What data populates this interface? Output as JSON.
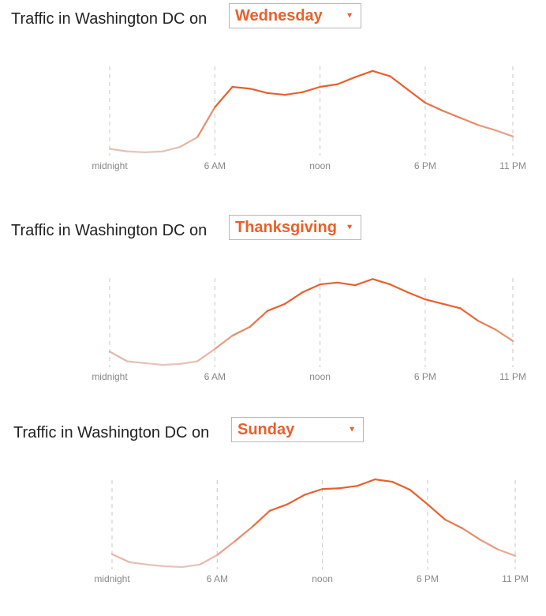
{
  "chart_data": [
    {
      "type": "line",
      "title_prefix": "Traffic in Washington DC on",
      "selected_day": "Wednesday",
      "x": [
        0,
        1,
        2,
        3,
        4,
        5,
        6,
        7,
        8,
        9,
        10,
        11,
        12,
        13,
        14,
        15,
        16,
        17,
        18,
        19,
        20,
        21,
        22,
        23
      ],
      "x_ticks": [
        {
          "value": 0,
          "label": "midnight"
        },
        {
          "value": 6,
          "label": "6 AM"
        },
        {
          "value": 12,
          "label": "noon"
        },
        {
          "value": 18,
          "label": "6 PM"
        },
        {
          "value": 23,
          "label": "11 PM"
        }
      ],
      "values": [
        5,
        2,
        1,
        2,
        7,
        18,
        52,
        75,
        73,
        68,
        66,
        69,
        75,
        78,
        86,
        93,
        87,
        72,
        57,
        48,
        40,
        32,
        26,
        19
      ],
      "ylim": [
        0,
        100
      ],
      "colors": {
        "low": "#e6c6bc",
        "high": "#e8602c"
      },
      "grid": "vertical-dashed"
    },
    {
      "type": "line",
      "title_prefix": "Traffic in Washington DC on",
      "selected_day": "Thanksgiving",
      "x": [
        0,
        1,
        2,
        3,
        4,
        5,
        6,
        7,
        8,
        9,
        10,
        11,
        12,
        13,
        14,
        15,
        16,
        17,
        18,
        19,
        20,
        21,
        22,
        23
      ],
      "x_ticks": [
        {
          "value": 0,
          "label": "midnight"
        },
        {
          "value": 6,
          "label": "6 AM"
        },
        {
          "value": 12,
          "label": "noon"
        },
        {
          "value": 18,
          "label": "6 PM"
        },
        {
          "value": 23,
          "label": "11 PM"
        }
      ],
      "values": [
        15,
        4,
        2,
        0,
        1,
        4,
        18,
        33,
        43,
        61,
        69,
        82,
        91,
        93,
        90,
        97,
        91,
        82,
        74,
        69,
        64,
        50,
        40,
        27
      ],
      "ylim": [
        0,
        100
      ],
      "colors": {
        "low": "#e6c6bc",
        "high": "#e8602c"
      },
      "grid": "vertical-dashed"
    },
    {
      "type": "line",
      "title_prefix": "Traffic in Washington DC on",
      "selected_day": "Sunday",
      "x": [
        0,
        1,
        2,
        3,
        4,
        5,
        6,
        7,
        8,
        9,
        10,
        11,
        12,
        13,
        14,
        15,
        16,
        17,
        18,
        19,
        20,
        21,
        22,
        23
      ],
      "x_ticks": [
        {
          "value": 0,
          "label": "midnight"
        },
        {
          "value": 6,
          "label": "6 AM"
        },
        {
          "value": 12,
          "label": "noon"
        },
        {
          "value": 18,
          "label": "6 PM"
        },
        {
          "value": 23,
          "label": "11 PM"
        }
      ],
      "values": [
        16,
        6,
        3,
        1,
        0,
        3,
        15,
        32,
        50,
        70,
        78,
        90,
        97,
        98,
        101,
        109,
        106,
        96,
        78,
        59,
        48,
        34,
        22,
        14
      ],
      "ylim": [
        0,
        110
      ],
      "colors": {
        "low": "#e6c6bc",
        "high": "#e8602c"
      },
      "grid": "vertical-dashed"
    }
  ]
}
